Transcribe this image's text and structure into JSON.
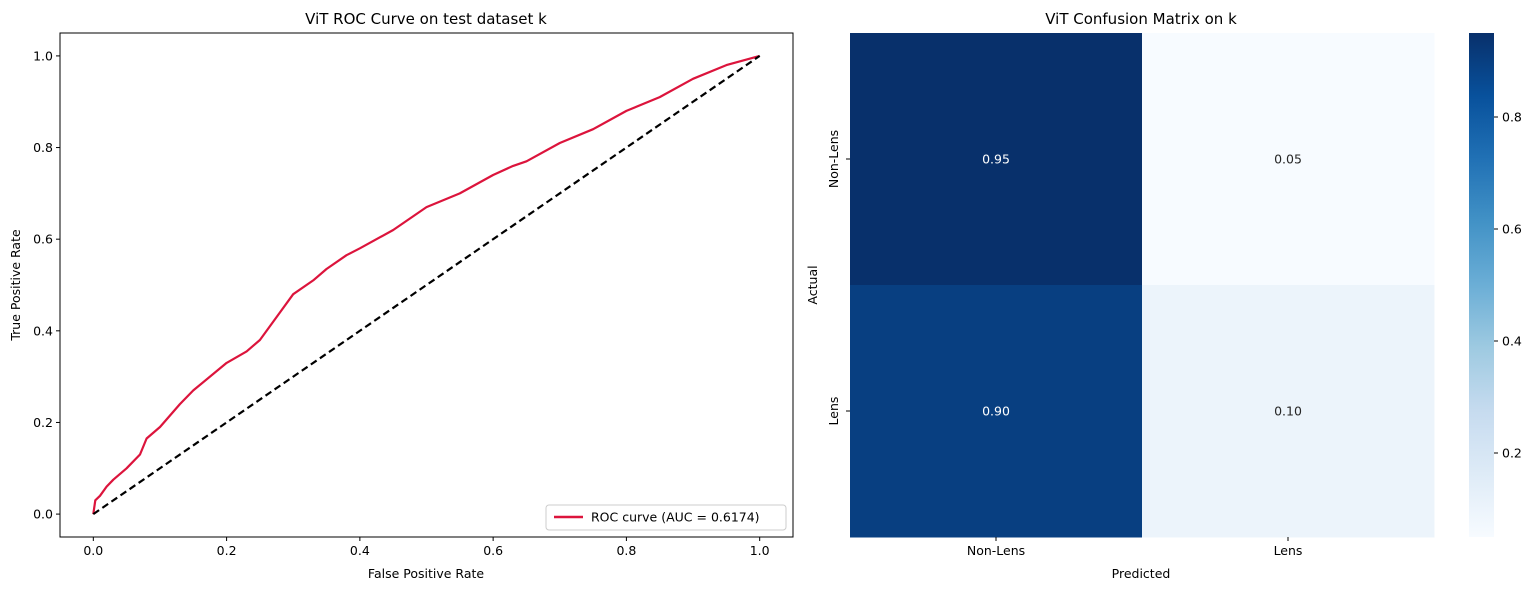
{
  "chart_data": [
    {
      "type": "line",
      "title": "ViT ROC Curve on test dataset k",
      "xlabel": "False Positive Rate",
      "ylabel": "True Positive Rate",
      "xlim": [
        -0.05,
        1.05
      ],
      "ylim": [
        -0.05,
        1.05
      ],
      "xticks": [
        "0.0",
        "0.2",
        "0.4",
        "0.6",
        "0.8",
        "1.0"
      ],
      "yticks": [
        "0.0",
        "0.2",
        "0.4",
        "0.6",
        "0.8",
        "1.0"
      ],
      "grid": false,
      "legend_position": "lower-right",
      "series": [
        {
          "name": "ROC curve (AUC = 0.6174)",
          "color": "#dc143c",
          "x": [
            0.0,
            0.003,
            0.01,
            0.02,
            0.03,
            0.05,
            0.07,
            0.08,
            0.1,
            0.13,
            0.15,
            0.2,
            0.23,
            0.25,
            0.28,
            0.3,
            0.33,
            0.35,
            0.38,
            0.4,
            0.45,
            0.5,
            0.55,
            0.6,
            0.63,
            0.65,
            0.7,
            0.75,
            0.8,
            0.85,
            0.9,
            0.95,
            1.0
          ],
          "y": [
            0.0,
            0.03,
            0.04,
            0.06,
            0.075,
            0.1,
            0.13,
            0.165,
            0.19,
            0.24,
            0.27,
            0.33,
            0.355,
            0.38,
            0.44,
            0.48,
            0.51,
            0.535,
            0.565,
            0.58,
            0.62,
            0.67,
            0.7,
            0.74,
            0.76,
            0.77,
            0.81,
            0.84,
            0.88,
            0.91,
            0.95,
            0.98,
            1.0
          ]
        },
        {
          "name": "",
          "color": "#000000",
          "style": "dashed",
          "x": [
            0.0,
            1.0
          ],
          "y": [
            0.0,
            1.0
          ]
        }
      ]
    },
    {
      "type": "heatmap",
      "title": "ViT Confusion Matrix on k",
      "xlabel": "Predicted",
      "ylabel": "Actual",
      "x_categories": [
        "Non-Lens",
        "Lens"
      ],
      "y_categories": [
        "Non-Lens",
        "Lens"
      ],
      "values": [
        [
          0.95,
          0.05
        ],
        [
          0.9,
          0.1
        ]
      ],
      "annotations": [
        [
          "0.95",
          "0.05"
        ],
        [
          "0.90",
          "0.10"
        ]
      ],
      "colormap": "Blues",
      "colorbar": {
        "range": [
          0.05,
          0.95
        ],
        "ticks": [
          "0.2",
          "0.4",
          "0.6",
          "0.8"
        ]
      }
    }
  ]
}
